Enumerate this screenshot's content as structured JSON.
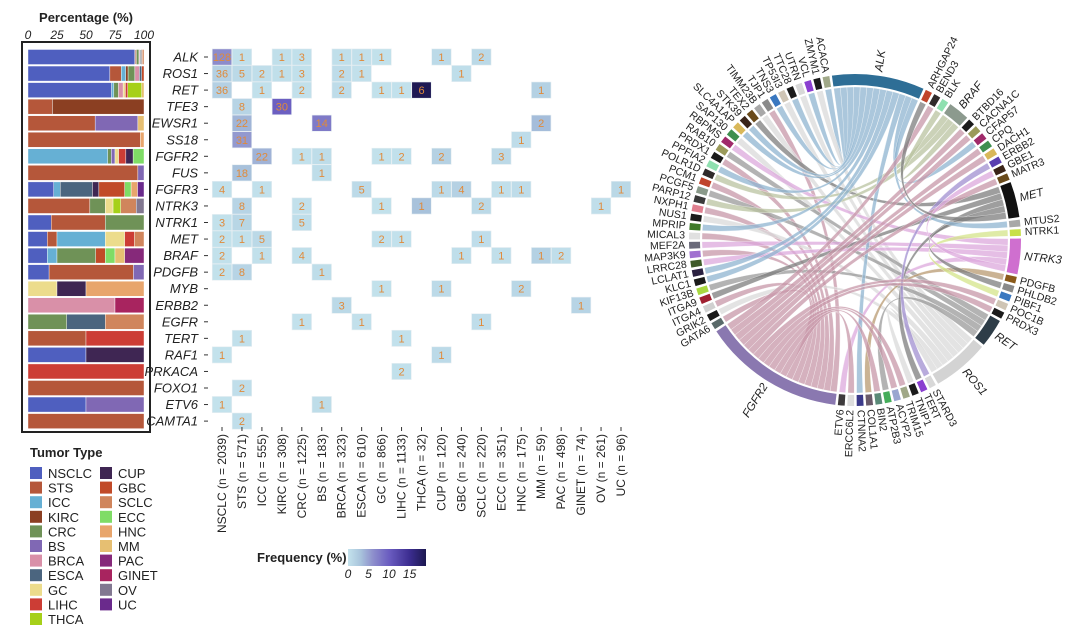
{
  "bar_panel": {
    "title": "Percentage (%)",
    "ticks": [
      "0",
      "25",
      "50",
      "75",
      "100"
    ]
  },
  "genes": [
    "ALK",
    "ROS1",
    "RET",
    "TFE3",
    "EWSR1",
    "SS18",
    "FGFR2",
    "FUS",
    "FGFR3",
    "NTRK3",
    "NTRK1",
    "MET",
    "BRAF",
    "PDGFB",
    "MYB",
    "ERBB2",
    "EGFR",
    "TERT",
    "RAF1",
    "PRKACA",
    "FOXO1",
    "ETV6",
    "CAMTA1"
  ],
  "tumor_types": [
    {
      "name": "NSCLC",
      "n": 2039,
      "color": "#4f5fbf",
      "label": "NSCLC (n = 2039)"
    },
    {
      "name": "STS",
      "n": 571,
      "color": "#b5573a",
      "label": "STS (n = 571)"
    },
    {
      "name": "ICC",
      "n": 555,
      "color": "#66b0d4",
      "label": "ICC (n = 555)"
    },
    {
      "name": "KIRC",
      "n": 308,
      "color": "#8b3f22",
      "label": "KIRC (n = 308)"
    },
    {
      "name": "CRC",
      "n": 1225,
      "color": "#6f9257",
      "label": "CRC (n = 1225)"
    },
    {
      "name": "BS",
      "n": 183,
      "color": "#8068b4",
      "label": "BS (n = 183)"
    },
    {
      "name": "BRCA",
      "n": 323,
      "color": "#d990a8",
      "label": "BRCA (n = 323)"
    },
    {
      "name": "ESCA",
      "n": 610,
      "color": "#4b657f",
      "label": "ESCA (n = 610)"
    },
    {
      "name": "GC",
      "n": 866,
      "color": "#ecdc8c",
      "label": "GC (n = 866)"
    },
    {
      "name": "LIHC",
      "n": 1133,
      "color": "#cc3d35",
      "label": "LIHC (n = 1133)"
    },
    {
      "name": "THCA",
      "n": 32,
      "color": "#a6d019",
      "label": "THCA (n = 32)"
    },
    {
      "name": "CUP",
      "n": 120,
      "color": "#3f2653",
      "label": "CUP (n = 120)"
    },
    {
      "name": "GBC",
      "n": 240,
      "color": "#c14a28",
      "label": "GBC (n = 240)"
    },
    {
      "name": "SCLC",
      "n": 220,
      "color": "#d0855c",
      "label": "SCLC (n = 220)"
    },
    {
      "name": "ECC",
      "n": 351,
      "color": "#7fdc66",
      "label": "ECC (n = 351)"
    },
    {
      "name": "HNC",
      "n": 175,
      "color": "#e8a56c",
      "label": "HNC (n = 175)"
    },
    {
      "name": "MM",
      "n": 59,
      "color": "#e6bf72",
      "label": "MM (n = 59)"
    },
    {
      "name": "PAC",
      "n": 498,
      "color": "#86297a",
      "label": "PAC (n = 498)"
    },
    {
      "name": "GINET",
      "n": 74,
      "color": "#a8245f",
      "label": "GINET (n = 74)"
    },
    {
      "name": "OV",
      "n": 261,
      "color": "#827891",
      "label": "OV (n = 261)"
    },
    {
      "name": "UC",
      "n": 96,
      "color": "#6a2a8c",
      "label": "UC (n = 96)"
    }
  ],
  "legend": {
    "title": "Tumor Type"
  },
  "freq_legend": {
    "title": "Frequency (%)",
    "ticks": [
      "0",
      "5",
      "10",
      "15"
    ],
    "values": [
      0,
      5,
      10,
      15
    ],
    "max": 19
  },
  "chart_data": {
    "type": "heatmap",
    "rows": "genes",
    "columns": "tumor_types",
    "counts": [
      [
        128,
        1,
        0,
        1,
        3,
        0,
        1,
        1,
        1,
        0,
        0,
        1,
        0,
        2,
        0,
        0,
        0,
        0,
        0,
        0,
        0
      ],
      [
        36,
        5,
        2,
        1,
        3,
        0,
        2,
        1,
        0,
        0,
        0,
        0,
        1,
        0,
        0,
        0,
        0,
        0,
        0,
        0,
        0
      ],
      [
        36,
        0,
        1,
        0,
        2,
        0,
        2,
        0,
        1,
        1,
        6,
        0,
        0,
        0,
        0,
        0,
        1,
        0,
        0,
        0,
        0
      ],
      [
        0,
        8,
        0,
        30,
        0,
        0,
        0,
        0,
        0,
        0,
        0,
        0,
        0,
        0,
        0,
        0,
        0,
        0,
        0,
        0,
        0
      ],
      [
        0,
        22,
        0,
        0,
        0,
        14,
        0,
        0,
        0,
        0,
        0,
        0,
        0,
        0,
        0,
        0,
        2,
        0,
        0,
        0,
        0
      ],
      [
        0,
        31,
        0,
        0,
        0,
        0,
        0,
        0,
        0,
        0,
        0,
        0,
        0,
        0,
        0,
        1,
        0,
        0,
        0,
        0,
        0
      ],
      [
        0,
        0,
        22,
        0,
        1,
        1,
        0,
        0,
        1,
        2,
        0,
        2,
        0,
        0,
        3,
        0,
        0,
        0,
        0,
        0,
        0
      ],
      [
        0,
        18,
        0,
        0,
        0,
        1,
        0,
        0,
        0,
        0,
        0,
        0,
        0,
        0,
        0,
        0,
        0,
        0,
        0,
        0,
        0
      ],
      [
        4,
        0,
        1,
        0,
        0,
        0,
        0,
        5,
        0,
        0,
        0,
        1,
        4,
        0,
        1,
        1,
        0,
        0,
        0,
        0,
        1
      ],
      [
        0,
        8,
        0,
        0,
        2,
        0,
        0,
        0,
        1,
        0,
        1,
        0,
        0,
        2,
        0,
        0,
        0,
        0,
        0,
        1,
        0
      ],
      [
        3,
        7,
        0,
        0,
        5,
        0,
        0,
        0,
        0,
        0,
        0,
        0,
        0,
        0,
        0,
        0,
        0,
        0,
        0,
        0,
        0
      ],
      [
        2,
        1,
        5,
        0,
        0,
        0,
        0,
        0,
        2,
        1,
        0,
        0,
        0,
        1,
        0,
        0,
        0,
        0,
        0,
        0,
        0
      ],
      [
        2,
        0,
        1,
        0,
        4,
        0,
        0,
        0,
        0,
        0,
        0,
        0,
        1,
        0,
        1,
        0,
        1,
        2,
        0,
        0,
        0
      ],
      [
        2,
        8,
        0,
        0,
        0,
        1,
        0,
        0,
        0,
        0,
        0,
        0,
        0,
        0,
        0,
        0,
        0,
        0,
        0,
        0,
        0
      ],
      [
        0,
        0,
        0,
        0,
        0,
        0,
        0,
        0,
        1,
        0,
        0,
        1,
        0,
        0,
        0,
        2,
        0,
        0,
        0,
        0,
        0
      ],
      [
        0,
        0,
        0,
        0,
        0,
        0,
        3,
        0,
        0,
        0,
        0,
        0,
        0,
        0,
        0,
        0,
        0,
        0,
        1,
        0,
        0
      ],
      [
        0,
        0,
        0,
        0,
        1,
        0,
        0,
        1,
        0,
        0,
        0,
        0,
        0,
        1,
        0,
        0,
        0,
        0,
        0,
        0,
        0
      ],
      [
        0,
        1,
        0,
        0,
        0,
        0,
        0,
        0,
        0,
        1,
        0,
        0,
        0,
        0,
        0,
        0,
        0,
        0,
        0,
        0,
        0
      ],
      [
        1,
        0,
        0,
        0,
        0,
        0,
        0,
        0,
        0,
        0,
        0,
        1,
        0,
        0,
        0,
        0,
        0,
        0,
        0,
        0,
        0
      ],
      [
        0,
        0,
        0,
        0,
        0,
        0,
        0,
        0,
        0,
        2,
        0,
        0,
        0,
        0,
        0,
        0,
        0,
        0,
        0,
        0,
        0
      ],
      [
        0,
        2,
        0,
        0,
        0,
        0,
        0,
        0,
        0,
        0,
        0,
        0,
        0,
        0,
        0,
        0,
        0,
        0,
        0,
        0,
        0
      ],
      [
        1,
        0,
        0,
        0,
        0,
        1,
        0,
        0,
        0,
        0,
        0,
        0,
        0,
        0,
        0,
        0,
        0,
        0,
        0,
        0,
        0
      ],
      [
        0,
        2,
        0,
        0,
        0,
        0,
        0,
        0,
        0,
        0,
        0,
        0,
        0,
        0,
        0,
        0,
        0,
        0,
        0,
        0,
        0
      ]
    ],
    "color_metric": "Frequency (%) = count / n",
    "color_range": [
      0,
      19
    ]
  },
  "chord": {
    "sectors": [
      "ALK",
      "ARHGAP24",
      "BEND3",
      "BLK",
      "BRAF",
      "BTBD16",
      "CACNA1C",
      "CFAP57",
      "CPQ",
      "DACH1",
      "ERBB2",
      "GBE1",
      "MATR3",
      "MET",
      "MTUS2",
      "NTRK1",
      "NTRK3",
      "PDGFB",
      "PHLDB2",
      "PIBF1",
      "POC1B",
      "PRDX3",
      "RET",
      "ROS1",
      "STARD3",
      "TERT",
      "TNIP1",
      "TRIM15",
      "ACYP2",
      "ATP2B3",
      "BIN2",
      "COL1A1",
      "CTNNA2",
      "ERCC6L2",
      "ETV6",
      "FGFR2",
      "GATA6",
      "GRIK2",
      "ITGA4",
      "ITGA9",
      "KIF13B",
      "KLC1",
      "LCLAT1",
      "LRRC28",
      "MAP3K9",
      "MEF2A",
      "MICAL3",
      "MPRIP",
      "NUS1",
      "NXPH1",
      "PARP12",
      "PCGF5",
      "PCM1",
      "POLR1D",
      "PPFIA2",
      "PRDX1",
      "RAB10",
      "RBPMS",
      "SAP130",
      "SLC4A1AP",
      "STK39",
      "TEX2",
      "TIMM23B",
      "TJP1",
      "TNS3",
      "TP53I3",
      "TTC28",
      "UTRN",
      "VCL",
      "ZMYM1",
      "ACACA"
    ],
    "drivers": {
      "ALK": "#2e6e96",
      "BRAF": "#8c9a8e",
      "MET": "#111111",
      "NTRK3": "#cf6fcf",
      "RET": "#2e3d48",
      "ROS1": "#d3d3d3",
      "FGFR2": "#8a78b0",
      "ERBB2": "#5a3fb0",
      "NTRK1": "#c8e04a",
      "PDGFB": "#8a5a1a",
      "ETV6": "#3d3a3c"
    },
    "ribbon_colors": {
      "ALK": "#8fb4d0",
      "BRAF": "#b9c3a0",
      "MET": "#7e7e7e",
      "NTRK3": "#dca8dc",
      "RET": "#9a9a9a",
      "ROS1": "#d9d9d9",
      "FGFR2": "#c797a8",
      "ERBB2": "#a08fd0",
      "NTRK1": "#d4e48a",
      "PDGFB": "#b89a70"
    },
    "links": [
      [
        "ACACA",
        "ALK"
      ],
      [
        "ZMYM1",
        "ROS1"
      ],
      [
        "VCL",
        "ALK"
      ],
      [
        "UTRN",
        "ROS1"
      ],
      [
        "TTC28",
        "ALK"
      ],
      [
        "TP53I3",
        "ROS1"
      ],
      [
        "TNS3",
        "ALK"
      ],
      [
        "TJP1",
        "FGFR2"
      ],
      [
        "TIMM23B",
        "ROS1"
      ],
      [
        "TEX2",
        "MET"
      ],
      [
        "STK39",
        "ALK"
      ],
      [
        "SLC4A1AP",
        "ALK"
      ],
      [
        "SAP130",
        "ROS1"
      ],
      [
        "RBPMS",
        "NTRK3"
      ],
      [
        "RAB10",
        "RET"
      ],
      [
        "PRDX1",
        "FGFR2"
      ],
      [
        "PPFIA2",
        "ALK"
      ],
      [
        "POLR1D",
        "BRAF"
      ],
      [
        "PCM1",
        "FGFR2"
      ],
      [
        "PCGF5",
        "RET"
      ],
      [
        "PARP12",
        "BRAF"
      ],
      [
        "NXPH1",
        "FGFR2"
      ],
      [
        "NUS1",
        "ROS1"
      ],
      [
        "MPRIP",
        "ALK"
      ],
      [
        "MICAL3",
        "FGFR2"
      ],
      [
        "MEF2A",
        "NTRK3"
      ],
      [
        "MAP3K9",
        "FGFR2"
      ],
      [
        "LRRC28",
        "NTRK3"
      ],
      [
        "LCLAT1",
        "ALK"
      ],
      [
        "KLC1",
        "ALK"
      ],
      [
        "KIF13B",
        "RET"
      ],
      [
        "ITGA9",
        "MET"
      ],
      [
        "ITGA4",
        "FGFR2"
      ],
      [
        "GRIK2",
        "ROS1"
      ],
      [
        "GATA6",
        "FGFR2"
      ],
      [
        "ETV6",
        "NTRK3"
      ],
      [
        "ERCC6L2",
        "FGFR2"
      ],
      [
        "CTNNA2",
        "ALK"
      ],
      [
        "COL1A1",
        "PDGFB"
      ],
      [
        "BIN2",
        "FGFR2"
      ],
      [
        "ATP2B3",
        "RET"
      ],
      [
        "ACYP2",
        "FGFR2"
      ],
      [
        "TRIM15",
        "FGFR2"
      ],
      [
        "TNIP1",
        "ROS1"
      ],
      [
        "TERT",
        "MET"
      ],
      [
        "STARD3",
        "ERBB2"
      ],
      [
        "PRDX3",
        "FGFR2"
      ],
      [
        "POC1B",
        "FGFR2"
      ],
      [
        "PIBF1",
        "NTRK1"
      ],
      [
        "PHLDB2",
        "MET"
      ],
      [
        "MTUS2",
        "ALK"
      ],
      [
        "MATR3",
        "FGFR2"
      ],
      [
        "GBE1",
        "NTRK3"
      ],
      [
        "DACH1",
        "FGFR2"
      ],
      [
        "CPQ",
        "FGFR2"
      ],
      [
        "CFAP57",
        "ALK"
      ],
      [
        "CACNA1C",
        "FGFR2"
      ],
      [
        "BTBD16",
        "FGFR2"
      ],
      [
        "BLK",
        "BRAF"
      ],
      [
        "BEND3",
        "FGFR2"
      ],
      [
        "ARHGAP24",
        "MET"
      ]
    ]
  }
}
